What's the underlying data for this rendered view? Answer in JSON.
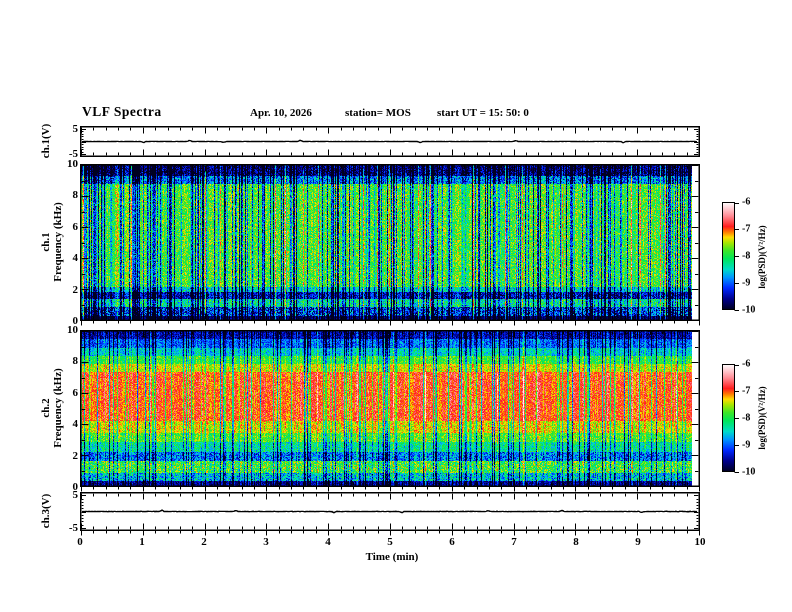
{
  "header": {
    "title": "VLF Spectra",
    "date": "Apr. 10, 2026",
    "station": "station= MOS",
    "start_ut": "start UT =  15: 50: 0"
  },
  "x_axis": {
    "label": "Time (min)",
    "ticks": [
      0,
      1,
      2,
      3,
      4,
      5,
      6,
      7,
      8,
      9,
      10
    ],
    "minor_step": 0.2,
    "range": [
      0,
      10
    ]
  },
  "colormap": [
    [
      -10.0,
      "#000020"
    ],
    [
      -9.6,
      "#00008c"
    ],
    [
      -9.2,
      "#0028ff"
    ],
    [
      -8.8,
      "#0096ff"
    ],
    [
      -8.5,
      "#00dcc8"
    ],
    [
      -8.1,
      "#00e65a"
    ],
    [
      -7.8,
      "#3ce628"
    ],
    [
      -7.5,
      "#aae600"
    ],
    [
      -7.3,
      "#ffdc00"
    ],
    [
      -7.1,
      "#ff7800"
    ],
    [
      -6.9,
      "#ff1e1e"
    ],
    [
      -6.5,
      "#ff8c96"
    ],
    [
      -6.2,
      "#ffd2d7"
    ],
    [
      -6.0,
      "#ffffff"
    ]
  ],
  "chart_data": [
    {
      "type": "line",
      "panel": "ch1_voltage",
      "ylabel": "ch.1(V)",
      "ylim": [
        -6,
        6
      ],
      "y_ticks_labeled": [
        5,
        -5
      ],
      "x_range": [
        0,
        10
      ],
      "baseline": 0,
      "noise_amp": 0.06,
      "spikes": [
        [
          1.0,
          -0.5
        ],
        [
          1.75,
          0.45
        ],
        [
          2.3,
          -0.4
        ],
        [
          3.55,
          0.5
        ],
        [
          5.5,
          -0.45
        ],
        [
          7.05,
          0.4
        ],
        [
          8.8,
          -0.5
        ]
      ]
    },
    {
      "type": "spectrogram",
      "panel": "ch1_spectrogram",
      "ylabel_lines": [
        "ch.1",
        "Frequency (kHz)"
      ],
      "x_range": [
        0,
        10
      ],
      "y_range": [
        0,
        10
      ],
      "y_ticks": [
        0,
        2,
        4,
        6,
        8,
        10
      ],
      "value_range": [
        -10,
        -6
      ],
      "bands": [
        {
          "f": [
            9.3,
            10.0
          ],
          "mean": -9.7,
          "noise": 0.5
        },
        {
          "f": [
            8.8,
            9.3
          ],
          "mean": -8.9,
          "noise": 0.6
        },
        {
          "f": [
            2.1,
            8.8
          ],
          "mean": -7.85,
          "noise": 0.5
        },
        {
          "f": [
            1.8,
            2.1
          ],
          "mean": -8.5,
          "noise": 0.5
        },
        {
          "f": [
            1.3,
            1.8
          ],
          "mean": -9.4,
          "noise": 0.5
        },
        {
          "f": [
            0.8,
            1.3
          ],
          "mean": -8.3,
          "noise": 0.6
        },
        {
          "f": [
            0.2,
            0.8
          ],
          "mean": -9.2,
          "noise": 0.7
        },
        {
          "f": [
            0.0,
            0.2
          ],
          "mean": -9.8,
          "noise": 0.2
        }
      ],
      "streaks": {
        "dark_prob": 0.3,
        "dark_depth": 1.9,
        "bright_prob": 0.04,
        "bright_gain": 1.05,
        "col_jitter": 0.28
      },
      "colorbar": {
        "label": "log(PSD)(V²/Hz)",
        "ticks": [
          -6,
          -7,
          -8,
          -9,
          -10
        ]
      }
    },
    {
      "type": "spectrogram",
      "panel": "ch2_spectrogram",
      "ylabel_lines": [
        "ch.2",
        "Frequency (kHz)"
      ],
      "x_range": [
        0,
        10
      ],
      "y_range": [
        0,
        10
      ],
      "y_ticks": [
        0,
        2,
        4,
        6,
        8,
        10
      ],
      "value_range": [
        -10,
        -6
      ],
      "bands": [
        {
          "f": [
            9.5,
            10.0
          ],
          "mean": -9.5,
          "noise": 0.35
        },
        {
          "f": [
            8.9,
            9.5
          ],
          "mean": -9.0,
          "noise": 0.4
        },
        {
          "f": [
            8.4,
            8.9
          ],
          "mean": -8.5,
          "noise": 0.4
        },
        {
          "f": [
            7.9,
            8.4
          ],
          "mean": -7.9,
          "noise": 0.35
        },
        {
          "f": [
            7.4,
            7.9
          ],
          "mean": -7.45,
          "noise": 0.3
        },
        {
          "f": [
            4.2,
            7.4
          ],
          "mean": -6.95,
          "noise": 0.3
        },
        {
          "f": [
            3.4,
            4.2
          ],
          "mean": -7.4,
          "noise": 0.35
        },
        {
          "f": [
            2.8,
            3.4
          ],
          "mean": -7.8,
          "noise": 0.4
        },
        {
          "f": [
            2.2,
            2.8
          ],
          "mean": -8.3,
          "noise": 0.45
        },
        {
          "f": [
            1.6,
            2.2
          ],
          "mean": -8.9,
          "noise": 0.55
        },
        {
          "f": [
            0.8,
            1.6
          ],
          "mean": -7.9,
          "noise": 0.6
        },
        {
          "f": [
            0.3,
            0.8
          ],
          "mean": -8.6,
          "noise": 0.6
        },
        {
          "f": [
            0.0,
            0.3
          ],
          "mean": -9.6,
          "noise": 0.3
        }
      ],
      "streaks": {
        "dark_prob": 0.22,
        "dark_depth": 1.7,
        "bright_prob": 0.02,
        "bright_gain": 0.8,
        "col_jitter": 0.3
      },
      "colorbar": {
        "label": "log(PSD)(V²/Hz)",
        "ticks": [
          -6,
          -7,
          -8,
          -9,
          -10
        ]
      }
    },
    {
      "type": "line",
      "panel": "ch3_voltage",
      "ylabel": "ch.3(V)",
      "ylim": [
        -6,
        6
      ],
      "y_ticks_labeled": [
        5,
        -5
      ],
      "x_range": [
        0,
        10
      ],
      "baseline": 0,
      "noise_amp": 0.06,
      "spikes": [
        [
          1.3,
          0.4
        ],
        [
          2.5,
          0.35
        ],
        [
          4.1,
          -0.4
        ],
        [
          5.2,
          -0.35
        ],
        [
          6.6,
          0.3
        ],
        [
          7.8,
          0.35
        ],
        [
          9.1,
          -0.3
        ]
      ]
    }
  ]
}
